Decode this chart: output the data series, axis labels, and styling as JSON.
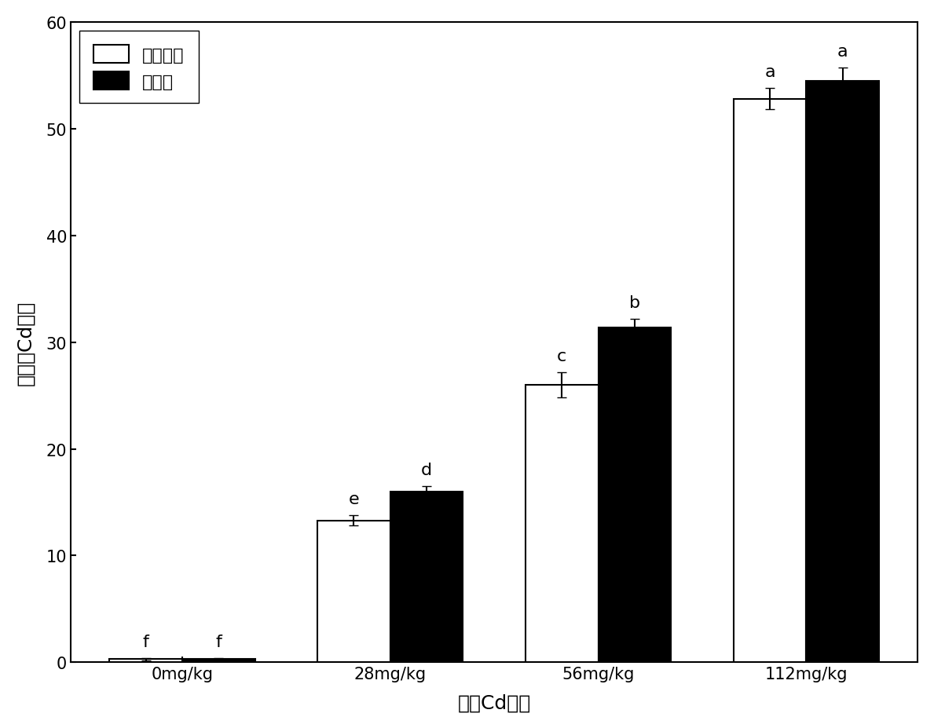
{
  "categories": [
    "0mg/kg",
    "28mg/kg",
    "56mg/kg",
    "112mg/kg"
  ],
  "white_values": [
    0.3,
    13.3,
    26.0,
    52.8
  ],
  "black_values": [
    0.3,
    16.0,
    31.4,
    54.5
  ],
  "white_errors": [
    0.1,
    0.5,
    1.2,
    1.0
  ],
  "black_errors": [
    0.1,
    0.5,
    0.8,
    1.2
  ],
  "white_labels": [
    "f",
    "e",
    "c",
    "a"
  ],
  "black_labels": [
    "f",
    "d",
    "b",
    "a"
  ],
  "legend_white": "未接菌组",
  "legend_black": "接菌组",
  "xlabel": "土壤Cd浓度",
  "ylabel": "有效态Cd浓度",
  "ylim": [
    0,
    60
  ],
  "yticks": [
    0,
    10,
    20,
    30,
    40,
    50,
    60
  ],
  "bar_width": 0.35,
  "white_color": "#ffffff",
  "black_color": "#000000",
  "edge_color": "#000000",
  "background_color": "#ffffff",
  "title_fontsize": 16,
  "label_fontsize": 18,
  "tick_fontsize": 15,
  "legend_fontsize": 16,
  "annotation_fontsize": 16
}
